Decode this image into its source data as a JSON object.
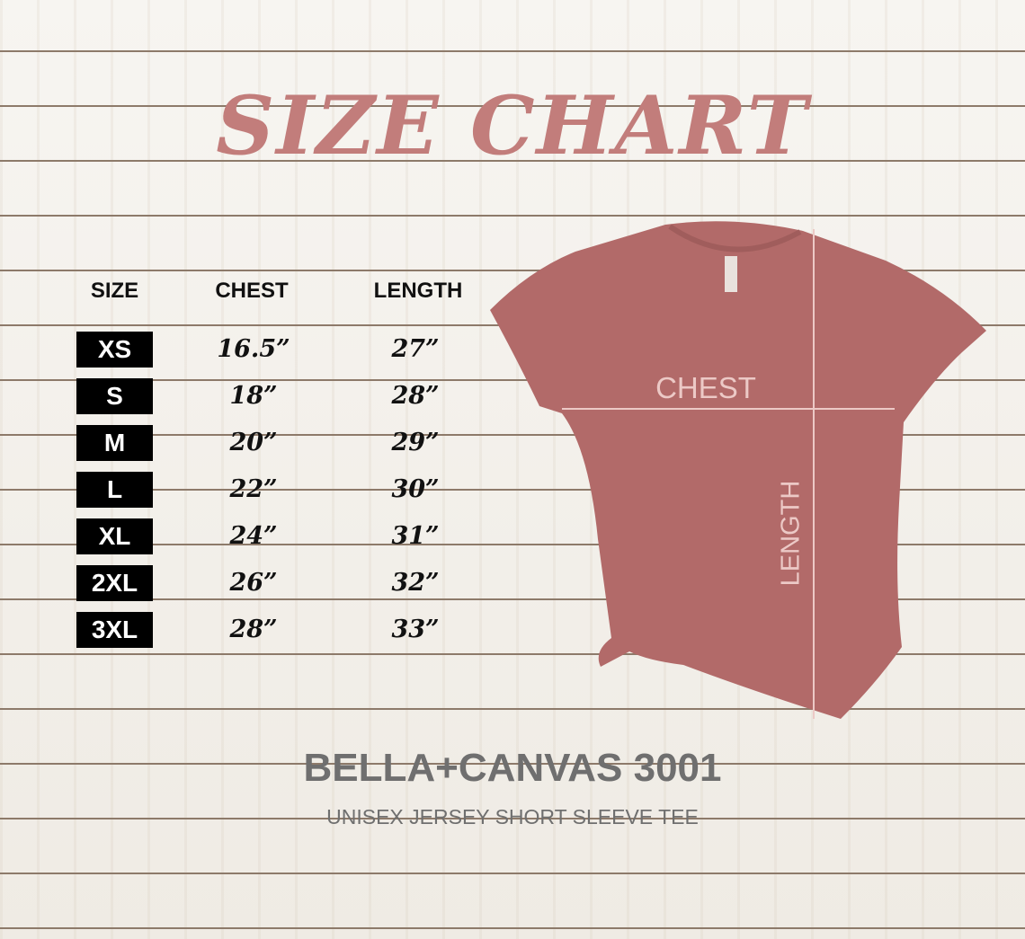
{
  "title": "SIZE CHART",
  "table": {
    "headers": [
      "SIZE",
      "CHEST",
      "LENGTH"
    ],
    "rows": [
      {
        "size": "XS",
        "chest": "16.5”",
        "length": "27”"
      },
      {
        "size": "S",
        "chest": "18”",
        "length": "28”"
      },
      {
        "size": "M",
        "chest": "20”",
        "length": "29”"
      },
      {
        "size": "L",
        "chest": "22”",
        "length": "30”"
      },
      {
        "size": "XL",
        "chest": "24”",
        "length": "31”"
      },
      {
        "size": "2XL",
        "chest": "26”",
        "length": "32”"
      },
      {
        "size": "3XL",
        "chest": "28”",
        "length": "33”"
      }
    ]
  },
  "diagram": {
    "chest_label": "CHEST",
    "length_label": "LENGTH",
    "shirt_color": "#b26a69"
  },
  "brand": "BELLA+CANVAS 3001",
  "subtitle": "UNISEX JERSEY SHORT SLEEVE TEE",
  "colors": {
    "title": "#c27d7b",
    "brand_text": "#6f6f6f",
    "size_box": "#000000"
  }
}
